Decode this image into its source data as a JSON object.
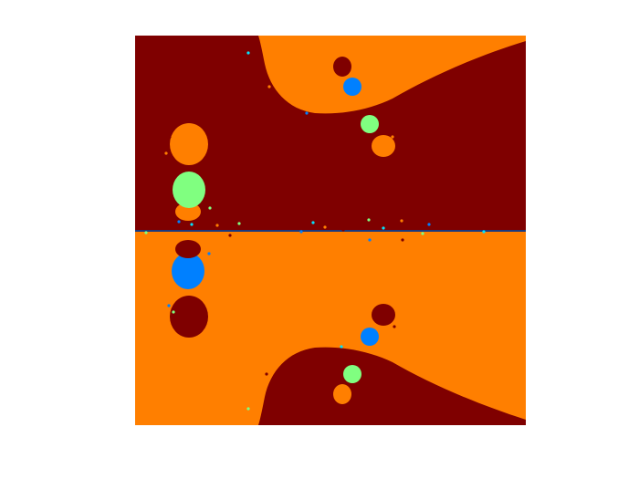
{
  "figure": {
    "description_visible_text": "",
    "colors": {
      "background": "#ffffff",
      "dark_red": "#7f0000",
      "orange": "#ff7f00",
      "green": "#80ff80",
      "blue": "#0080ff",
      "cyan": "#00e5ff",
      "midline": "#1a3a80"
    }
  }
}
